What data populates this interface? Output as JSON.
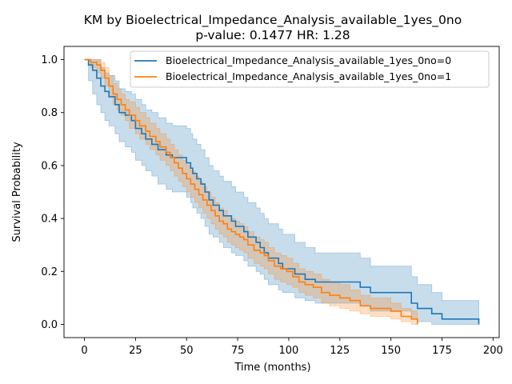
{
  "chart_data": {
    "type": "line",
    "title": "KM by Bioelectrical_Impedance_Analysis_available_1yes_0no",
    "subtitle": "p-value: 0.1477  HR: 1.28",
    "xlabel": "Time (months)",
    "ylabel": "Survival Probability",
    "xlim": [
      -10,
      203
    ],
    "ylim": [
      -0.05,
      1.05
    ],
    "xticks": [
      0,
      25,
      50,
      75,
      100,
      125,
      150,
      175,
      200
    ],
    "yticks": [
      0.0,
      0.2,
      0.4,
      0.6,
      0.8,
      1.0
    ],
    "xtick_labels": [
      "0",
      "25",
      "50",
      "75",
      "100",
      "125",
      "150",
      "175",
      "200"
    ],
    "ytick_labels": [
      "0.0",
      "0.2",
      "0.4",
      "0.6",
      "0.8",
      "1.0"
    ],
    "grid": false,
    "legend_position": "top-right",
    "series": [
      {
        "name": "Bioelectrical_Impedance_Analysis_available_1yes_0no=0",
        "color": "#1f77b4",
        "step": true,
        "x": [
          0,
          2,
          4,
          6,
          8,
          10,
          12,
          15,
          17,
          20,
          23,
          25,
          28,
          30,
          33,
          36,
          40,
          43,
          46,
          50,
          52,
          53,
          55,
          57,
          59,
          61,
          63,
          66,
          68,
          72,
          74,
          78,
          80,
          84,
          86,
          88,
          90,
          95,
          97,
          103,
          108,
          113,
          119,
          135,
          140,
          148,
          160,
          163,
          170,
          175,
          193
        ],
        "y": [
          1.0,
          0.98,
          0.96,
          0.93,
          0.9,
          0.88,
          0.86,
          0.83,
          0.8,
          0.79,
          0.77,
          0.74,
          0.72,
          0.7,
          0.68,
          0.66,
          0.64,
          0.63,
          0.63,
          0.61,
          0.59,
          0.57,
          0.55,
          0.53,
          0.5,
          0.47,
          0.45,
          0.43,
          0.41,
          0.39,
          0.37,
          0.35,
          0.33,
          0.31,
          0.29,
          0.27,
          0.25,
          0.23,
          0.21,
          0.19,
          0.17,
          0.16,
          0.16,
          0.14,
          0.12,
          0.12,
          0.08,
          0.06,
          0.04,
          0.02,
          0.0
        ],
        "ci_lower": [
          1.0,
          0.92,
          0.87,
          0.83,
          0.8,
          0.77,
          0.75,
          0.72,
          0.69,
          0.67,
          0.65,
          0.62,
          0.6,
          0.58,
          0.56,
          0.53,
          0.51,
          0.5,
          0.5,
          0.48,
          0.46,
          0.44,
          0.42,
          0.4,
          0.37,
          0.34,
          0.33,
          0.31,
          0.29,
          0.27,
          0.26,
          0.24,
          0.22,
          0.2,
          0.19,
          0.17,
          0.15,
          0.13,
          0.12,
          0.1,
          0.09,
          0.08,
          0.08,
          0.07,
          0.05,
          0.05,
          0.02,
          0.01,
          0.0,
          0.0,
          0.0
        ],
        "ci_upper": [
          1.0,
          1.0,
          1.0,
          1.0,
          0.97,
          0.95,
          0.94,
          0.92,
          0.89,
          0.88,
          0.87,
          0.85,
          0.83,
          0.81,
          0.8,
          0.78,
          0.76,
          0.75,
          0.75,
          0.74,
          0.72,
          0.7,
          0.68,
          0.66,
          0.63,
          0.6,
          0.58,
          0.56,
          0.54,
          0.52,
          0.5,
          0.48,
          0.46,
          0.44,
          0.42,
          0.4,
          0.38,
          0.36,
          0.34,
          0.31,
          0.29,
          0.27,
          0.27,
          0.25,
          0.22,
          0.22,
          0.18,
          0.15,
          0.12,
          0.09,
          0.09
        ]
      },
      {
        "name": "Bioelectrical_Impedance_Analysis_available_1yes_0no=1",
        "color": "#ff7f0e",
        "step": true,
        "x": [
          0,
          3,
          6,
          8,
          10,
          12,
          14,
          16,
          18,
          20,
          22,
          25,
          27,
          30,
          32,
          35,
          37,
          40,
          42,
          44,
          46,
          48,
          50,
          52,
          54,
          56,
          58,
          60,
          62,
          64,
          66,
          68,
          70,
          72,
          74,
          76,
          78,
          80,
          83,
          86,
          88,
          90,
          93,
          96,
          99,
          102,
          105,
          108,
          112,
          116,
          120,
          125,
          130,
          135,
          140,
          150,
          155,
          160,
          163
        ],
        "y": [
          1.0,
          0.99,
          0.98,
          0.96,
          0.93,
          0.9,
          0.87,
          0.85,
          0.83,
          0.81,
          0.79,
          0.77,
          0.75,
          0.73,
          0.71,
          0.69,
          0.67,
          0.65,
          0.63,
          0.61,
          0.59,
          0.57,
          0.55,
          0.53,
          0.51,
          0.49,
          0.47,
          0.45,
          0.43,
          0.41,
          0.39,
          0.38,
          0.36,
          0.35,
          0.34,
          0.33,
          0.32,
          0.3,
          0.28,
          0.27,
          0.26,
          0.24,
          0.22,
          0.21,
          0.2,
          0.18,
          0.16,
          0.15,
          0.14,
          0.12,
          0.11,
          0.1,
          0.09,
          0.07,
          0.06,
          0.05,
          0.03,
          0.02,
          0.0
        ],
        "ci_lower": [
          1.0,
          0.97,
          0.95,
          0.93,
          0.9,
          0.86,
          0.83,
          0.81,
          0.79,
          0.77,
          0.74,
          0.72,
          0.7,
          0.68,
          0.66,
          0.64,
          0.62,
          0.6,
          0.58,
          0.56,
          0.54,
          0.52,
          0.5,
          0.48,
          0.46,
          0.44,
          0.42,
          0.4,
          0.38,
          0.36,
          0.34,
          0.33,
          0.31,
          0.3,
          0.29,
          0.28,
          0.27,
          0.25,
          0.23,
          0.22,
          0.21,
          0.19,
          0.17,
          0.16,
          0.15,
          0.14,
          0.12,
          0.11,
          0.1,
          0.08,
          0.07,
          0.06,
          0.05,
          0.04,
          0.03,
          0.02,
          0.01,
          0.0,
          0.0
        ],
        "ci_upper": [
          1.0,
          1.0,
          1.0,
          0.99,
          0.97,
          0.94,
          0.91,
          0.89,
          0.87,
          0.85,
          0.84,
          0.82,
          0.8,
          0.78,
          0.76,
          0.74,
          0.72,
          0.7,
          0.68,
          0.66,
          0.64,
          0.62,
          0.6,
          0.58,
          0.56,
          0.54,
          0.52,
          0.5,
          0.48,
          0.46,
          0.44,
          0.43,
          0.41,
          0.4,
          0.39,
          0.38,
          0.37,
          0.35,
          0.33,
          0.32,
          0.31,
          0.29,
          0.27,
          0.26,
          0.25,
          0.23,
          0.21,
          0.2,
          0.19,
          0.17,
          0.16,
          0.15,
          0.13,
          0.11,
          0.1,
          0.08,
          0.06,
          0.05,
          0.03
        ]
      }
    ]
  }
}
